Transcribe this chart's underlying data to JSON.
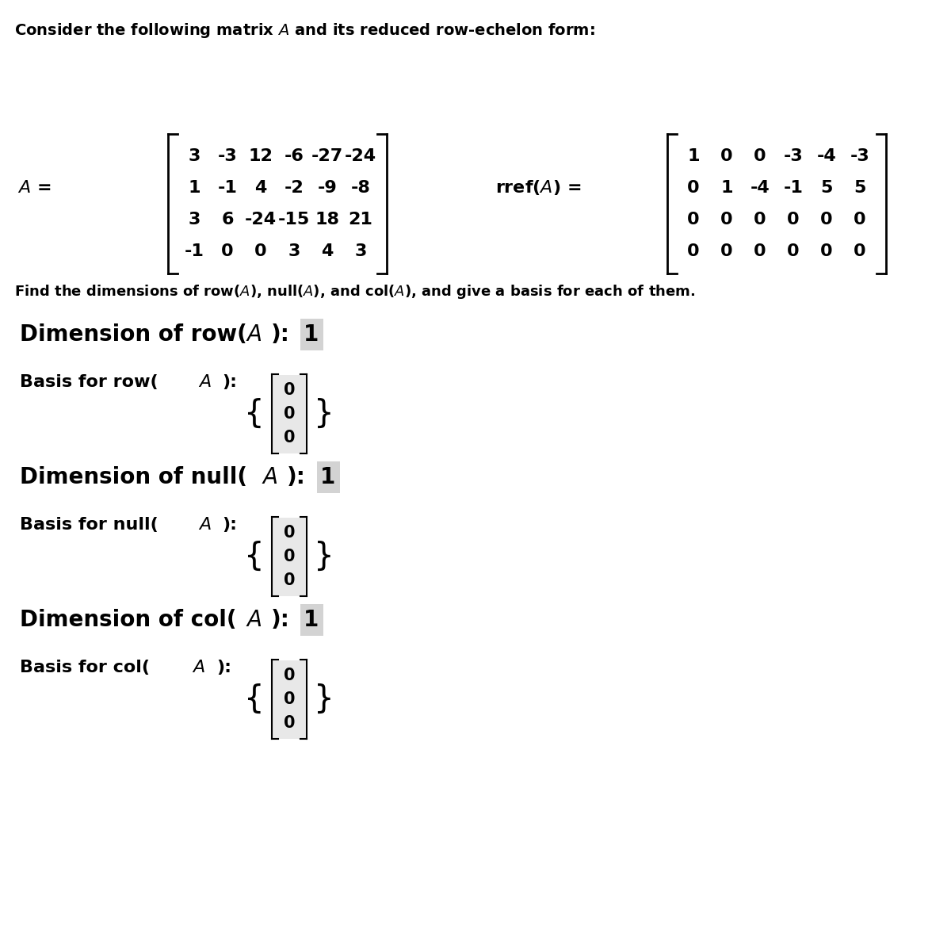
{
  "title_text": "Consider the following matrix $A$ and its reduced row-echelon form:",
  "A_matrix": [
    [
      "3",
      "-3",
      "12",
      "-6",
      "-27",
      "-24"
    ],
    [
      "1",
      "-1",
      "4",
      "-2",
      "-9",
      "-8"
    ],
    [
      "3",
      "6",
      "-24",
      "-15",
      "18",
      "21"
    ],
    [
      "-1",
      "0",
      "0",
      "3",
      "4",
      "3"
    ]
  ],
  "rref_matrix": [
    [
      "1",
      "0",
      "0",
      "-3",
      "-4",
      "-3"
    ],
    [
      "0",
      "1",
      "-4",
      "-1",
      "5",
      "5"
    ],
    [
      "0",
      "0",
      "0",
      "0",
      "0",
      "0"
    ],
    [
      "0",
      "0",
      "0",
      "0",
      "0",
      "0"
    ]
  ],
  "find_text": "Find the dimensions of row($A$), null($A$), and col($A$), and give a basis for each of them.",
  "dim_row_label": "Dimension of row($A$):",
  "dim_row_value": "1",
  "basis_row_label": "Basis for row($A$):",
  "dim_null_label": "Dimension of null($A$):",
  "dim_null_value": "1",
  "basis_null_label": "Basis for null($A$):",
  "dim_col_label": "Dimension of col($A$):",
  "dim_col_value": "1",
  "basis_col_label": "Basis for col($A$):",
  "vector_values": [
    "0",
    "0",
    "0"
  ],
  "bg_color": "#ffffff",
  "text_color": "#000000",
  "highlight_color": "#d3d3d3"
}
